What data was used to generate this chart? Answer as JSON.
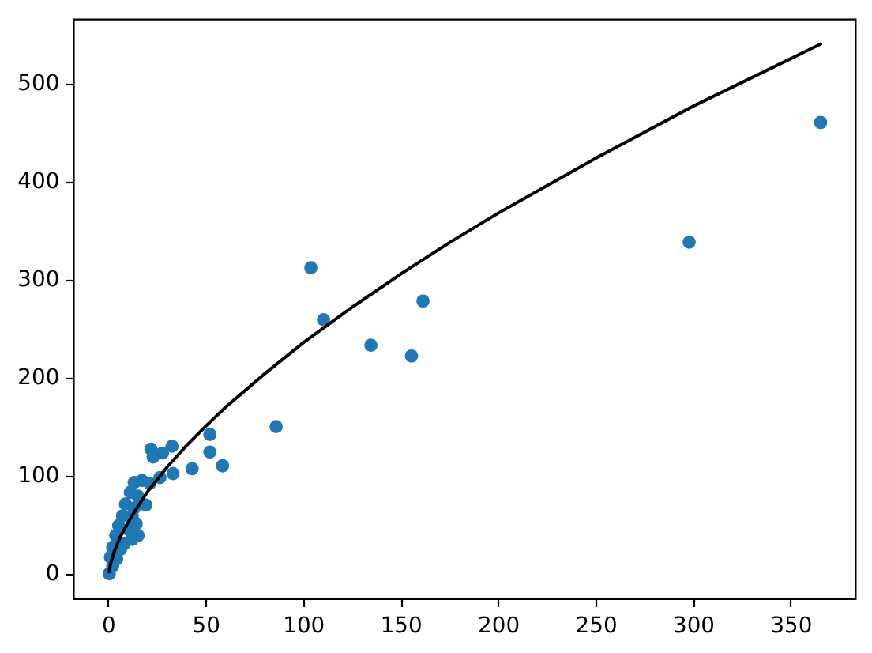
{
  "chart_data": {
    "type": "scatter",
    "xlim": [
      -18,
      383
    ],
    "ylim": [
      -25,
      566
    ],
    "xticks": [
      0,
      50,
      100,
      150,
      200,
      250,
      300,
      350
    ],
    "yticks": [
      0,
      100,
      200,
      300,
      400,
      500
    ],
    "grid": false,
    "legend": false,
    "marker": "circle",
    "series": [
      {
        "type": "scatter",
        "color": "#1f77b4",
        "x": [
          0.2,
          2,
          0.8,
          4,
          2,
          6,
          3.5,
          8,
          12,
          15,
          5,
          10,
          14,
          7,
          12,
          8.5,
          13,
          19,
          11,
          15,
          13,
          17,
          21,
          21.6,
          22.7,
          26.2,
          27.5,
          32.4,
          32.9,
          42.7,
          51.8,
          51.8,
          58.3,
          85.8,
          103.6,
          110.1,
          134.4,
          155.2,
          161.1,
          297.6,
          365
        ],
        "values": [
          1,
          9,
          18,
          16,
          28,
          26,
          40,
          32,
          36,
          40,
          50,
          46,
          52,
          60,
          60,
          72,
          68,
          71,
          84,
          80,
          94,
          96,
          93,
          128,
          120,
          99,
          124,
          131,
          103,
          108,
          143,
          125,
          111,
          151,
          313,
          260,
          234,
          223,
          279,
          339,
          461
        ]
      },
      {
        "type": "line",
        "color": "#000000",
        "marker": "none",
        "line_style": "solid",
        "x": [
          0.1,
          1,
          3,
          6,
          10,
          15,
          20,
          30,
          40,
          50,
          60,
          80,
          100,
          125,
          150,
          175,
          200,
          250,
          300,
          365
        ],
        "values": [
          3,
          12,
          25,
          39,
          54,
          70,
          85,
          110,
          132,
          152,
          171,
          205,
          237,
          273,
          307,
          339,
          369,
          425,
          478,
          541
        ]
      }
    ]
  }
}
